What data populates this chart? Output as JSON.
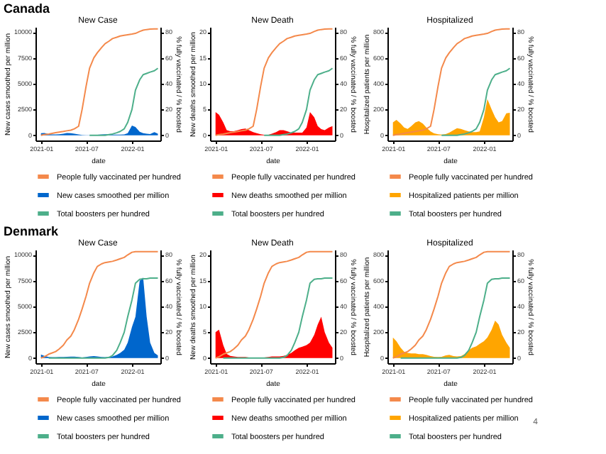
{
  "chart_data": [
    {
      "type": "area",
      "title": "New Case",
      "xlabel": "date",
      "ylabel": "New cases smoothed per million",
      "y2label": "% fully vaccinated / % boosted",
      "xlim": [
        "2020-12-10",
        "2022-04-25"
      ],
      "xticks": [
        "2021-01",
        "2021-07",
        "2022-01"
      ],
      "ylim": [
        -500,
        10500
      ],
      "yticks": [
        0,
        2500,
        5000,
        7500,
        10000
      ],
      "y2lim": [
        -4,
        84
      ],
      "y2ticks": [
        0,
        20,
        40,
        60,
        80
      ],
      "legend": "bottom",
      "annotations": [
        "Canada"
      ],
      "x": [
        "2021-01-01",
        "2021-01-15",
        "2021-02-01",
        "2021-02-15",
        "2021-03-01",
        "2021-03-15",
        "2021-04-01",
        "2021-04-15",
        "2021-05-01",
        "2021-05-15",
        "2021-06-01",
        "2021-06-15",
        "2021-07-01",
        "2021-07-15",
        "2021-08-01",
        "2021-08-15",
        "2021-09-01",
        "2021-09-15",
        "2021-10-01",
        "2021-10-15",
        "2021-11-01",
        "2021-11-15",
        "2021-12-01",
        "2021-12-15",
        "2022-01-01",
        "2022-01-15",
        "2022-02-01",
        "2022-02-15",
        "2022-03-01",
        "2022-03-15",
        "2022-04-01",
        "2022-04-15"
      ],
      "series": [
        {
          "name": "People fully vaccinated per hundred",
          "type": "line",
          "axis": "y2",
          "color": "#f4894b",
          "values": [
            0,
            0.5,
            1,
            1.5,
            2,
            2.5,
            3,
            3.5,
            4,
            5,
            7,
            20,
            38,
            52,
            60,
            64,
            68,
            71,
            73,
            75,
            76,
            77,
            77.5,
            78,
            78.5,
            79,
            80.5,
            81.5,
            82,
            82.3,
            82.5,
            82.5
          ]
        },
        {
          "name": "New cases smoothed per million",
          "color": "#0066cc",
          "values": [
            200,
            220,
            120,
            80,
            80,
            100,
            150,
            220,
            210,
            150,
            80,
            30,
            15,
            10,
            20,
            50,
            90,
            110,
            100,
            70,
            60,
            60,
            80,
            200,
            950,
            800,
            350,
            200,
            150,
            120,
            300,
            150
          ]
        },
        {
          "name": "Total boosters per hundred",
          "type": "line",
          "axis": "y2",
          "color": "#4daf8a",
          "values": [
            null,
            null,
            null,
            null,
            null,
            null,
            null,
            null,
            null,
            null,
            null,
            null,
            null,
            0,
            0,
            0,
            0,
            0,
            0.5,
            1,
            2,
            3,
            5,
            10,
            20,
            35,
            43,
            47,
            48,
            49,
            50,
            52
          ]
        }
      ]
    },
    {
      "type": "area",
      "title": "New Death",
      "xlabel": "date",
      "ylabel": "New deaths smoothed per million",
      "y2label": "% fully vaccinated / % boosted",
      "xlim": [
        "2020-12-10",
        "2022-04-25"
      ],
      "xticks": [
        "2021-01",
        "2021-07",
        "2022-01"
      ],
      "ylim": [
        -1,
        21
      ],
      "yticks": [
        0,
        5,
        10,
        15,
        20
      ],
      "y2lim": [
        -4,
        84
      ],
      "y2ticks": [
        0,
        20,
        40,
        60,
        80
      ],
      "legend": "bottom",
      "x": [
        "2021-01-01",
        "2021-01-15",
        "2021-02-01",
        "2021-02-15",
        "2021-03-01",
        "2021-03-15",
        "2021-04-01",
        "2021-04-15",
        "2021-05-01",
        "2021-05-15",
        "2021-06-01",
        "2021-06-15",
        "2021-07-01",
        "2021-07-15",
        "2021-08-01",
        "2021-08-15",
        "2021-09-01",
        "2021-09-15",
        "2021-10-01",
        "2021-10-15",
        "2021-11-01",
        "2021-11-15",
        "2021-12-01",
        "2021-12-15",
        "2022-01-01",
        "2022-01-15",
        "2022-02-01",
        "2022-02-15",
        "2022-03-01",
        "2022-03-15",
        "2022-04-01",
        "2022-04-15"
      ],
      "series": [
        {
          "name": "People fully vaccinated per hundred",
          "type": "line",
          "axis": "y2",
          "color": "#f4894b",
          "values": [
            0,
            0.5,
            1,
            1.5,
            2,
            2.5,
            3,
            3.5,
            4,
            5,
            7,
            20,
            38,
            52,
            60,
            64,
            68,
            71,
            73,
            75,
            76,
            77,
            77.5,
            78,
            78.5,
            79,
            80.5,
            81.5,
            82,
            82.3,
            82.5,
            82.5
          ]
        },
        {
          "name": "New deaths smoothed per million",
          "color": "#ff0000",
          "values": [
            4.5,
            4,
            2.5,
            1,
            0.8,
            0.8,
            1,
            1.2,
            1.3,
            1,
            0.6,
            0.4,
            0.2,
            0.1,
            0.1,
            0.3,
            0.6,
            1,
            1,
            0.8,
            0.5,
            0.5,
            0.5,
            0.5,
            1.5,
            4.5,
            3.5,
            1.8,
            1.2,
            1,
            1.5,
            1.8
          ]
        },
        {
          "name": "Total boosters per hundred",
          "type": "line",
          "axis": "y2",
          "color": "#4daf8a",
          "values": [
            null,
            null,
            null,
            null,
            null,
            null,
            null,
            null,
            null,
            null,
            null,
            null,
            null,
            0,
            0,
            0,
            0,
            0,
            0.5,
            1,
            2,
            3,
            5,
            10,
            20,
            35,
            43,
            47,
            48,
            49,
            50,
            52
          ]
        }
      ]
    },
    {
      "type": "area",
      "title": "Hospitalized",
      "xlabel": "date",
      "ylabel": "Hospitalized patients per million",
      "y2label": "% fully vaccinated / % boosted",
      "xlim": [
        "2020-12-10",
        "2022-04-25"
      ],
      "xticks": [
        "2021-01",
        "2021-07",
        "2022-01"
      ],
      "ylim": [
        -40,
        840
      ],
      "yticks": [
        0,
        200,
        400,
        600,
        800
      ],
      "y2lim": [
        -4,
        84
      ],
      "y2ticks": [
        0,
        20,
        40,
        60,
        80
      ],
      "legend": "bottom",
      "x": [
        "2021-01-01",
        "2021-01-15",
        "2021-02-01",
        "2021-02-15",
        "2021-03-01",
        "2021-03-15",
        "2021-04-01",
        "2021-04-15",
        "2021-05-01",
        "2021-05-15",
        "2021-06-01",
        "2021-06-15",
        "2021-07-01",
        "2021-07-15",
        "2021-08-01",
        "2021-08-15",
        "2021-09-01",
        "2021-09-15",
        "2021-10-01",
        "2021-10-15",
        "2021-11-01",
        "2021-11-15",
        "2021-12-01",
        "2021-12-15",
        "2022-01-01",
        "2022-01-15",
        "2022-02-01",
        "2022-02-15",
        "2022-03-01",
        "2022-03-15",
        "2022-04-01",
        "2022-04-15"
      ],
      "series": [
        {
          "name": "People fully vaccinated per hundred",
          "type": "line",
          "axis": "y2",
          "color": "#f4894b",
          "values": [
            0,
            0.5,
            1,
            1.5,
            2,
            2.5,
            3,
            3.5,
            4,
            5,
            7,
            20,
            38,
            52,
            60,
            64,
            68,
            71,
            73,
            75,
            76,
            77,
            77.5,
            78,
            78.5,
            79,
            80.5,
            81.5,
            82,
            82.3,
            82.5,
            82.5
          ]
        },
        {
          "name": "Hospitalized patients per million",
          "color": "#ffa500",
          "values": [
            100,
            120,
            90,
            60,
            50,
            70,
            100,
            110,
            90,
            60,
            30,
            15,
            8,
            5,
            10,
            20,
            40,
            55,
            50,
            40,
            30,
            25,
            25,
            30,
            140,
            280,
            200,
            140,
            100,
            110,
            170,
            175
          ]
        },
        {
          "name": "Total boosters per hundred",
          "type": "line",
          "axis": "y2",
          "color": "#4daf8a",
          "values": [
            null,
            null,
            null,
            null,
            null,
            null,
            null,
            null,
            null,
            null,
            null,
            null,
            null,
            0,
            0,
            0,
            0,
            0,
            0.5,
            1,
            2,
            3,
            5,
            10,
            20,
            35,
            43,
            47,
            48,
            49,
            50,
            52
          ]
        }
      ]
    },
    {
      "type": "area",
      "title": "New Case",
      "xlabel": "date",
      "ylabel": "New cases smoothed per million",
      "y2label": "% fully vaccinated / % boosted",
      "xlim": [
        "2020-12-10",
        "2022-04-25"
      ],
      "xticks": [
        "2021-01",
        "2021-07",
        "2022-01"
      ],
      "ylim": [
        -500,
        10500
      ],
      "yticks": [
        0,
        2500,
        5000,
        7500,
        10000
      ],
      "y2lim": [
        -4,
        84
      ],
      "y2ticks": [
        0,
        20,
        40,
        60,
        80
      ],
      "legend": "bottom",
      "annotations": [
        "Denmark"
      ],
      "x": [
        "2021-01-01",
        "2021-01-15",
        "2021-02-01",
        "2021-02-15",
        "2021-03-01",
        "2021-03-15",
        "2021-04-01",
        "2021-04-15",
        "2021-05-01",
        "2021-05-15",
        "2021-06-01",
        "2021-06-15",
        "2021-07-01",
        "2021-07-15",
        "2021-08-01",
        "2021-08-15",
        "2021-09-01",
        "2021-09-15",
        "2021-10-01",
        "2021-10-15",
        "2021-11-01",
        "2021-11-15",
        "2021-12-01",
        "2021-12-15",
        "2022-01-01",
        "2022-01-15",
        "2022-02-01",
        "2022-02-15",
        "2022-03-01",
        "2022-03-15",
        "2022-04-01",
        "2022-04-15"
      ],
      "series": [
        {
          "name": "People fully vaccinated per hundred",
          "type": "line",
          "axis": "y2",
          "color": "#f4894b",
          "values": [
            0,
            1,
            3,
            4,
            5,
            7,
            10,
            14,
            17,
            22,
            30,
            38,
            48,
            58,
            66,
            71,
            73,
            74,
            74.5,
            75,
            76,
            77,
            78,
            80,
            82,
            82.5,
            82.5,
            82.5,
            82.5,
            82.5,
            82.5,
            82.5
          ]
        },
        {
          "name": "New cases smoothed per million",
          "color": "#0066cc",
          "values": [
            350,
            200,
            100,
            80,
            90,
            100,
            110,
            120,
            130,
            140,
            100,
            50,
            100,
            150,
            180,
            150,
            100,
            80,
            100,
            150,
            300,
            500,
            800,
            1500,
            3000,
            4000,
            7500,
            7800,
            4000,
            1500,
            500,
            250
          ]
        },
        {
          "name": "Total boosters per hundred",
          "type": "line",
          "axis": "y2",
          "color": "#4daf8a",
          "values": [
            null,
            null,
            0,
            0,
            0,
            0,
            0,
            0,
            0,
            0,
            0,
            0,
            0,
            0,
            0,
            0,
            0,
            0,
            0.5,
            2,
            6,
            12,
            20,
            32,
            45,
            58,
            61,
            61.5,
            61.5,
            62,
            62,
            62
          ]
        }
      ]
    },
    {
      "type": "area",
      "title": "New Death",
      "xlabel": "date",
      "ylabel": "New deaths smoothed per million",
      "y2label": "% fully vaccinated / % boosted",
      "xlim": [
        "2020-12-10",
        "2022-04-25"
      ],
      "xticks": [
        "2021-01",
        "2021-07",
        "2022-01"
      ],
      "ylim": [
        -1,
        21
      ],
      "yticks": [
        0,
        5,
        10,
        15,
        20
      ],
      "y2lim": [
        -4,
        84
      ],
      "y2ticks": [
        0,
        20,
        40,
        60,
        80
      ],
      "legend": "bottom",
      "x": [
        "2021-01-01",
        "2021-01-15",
        "2021-02-01",
        "2021-02-15",
        "2021-03-01",
        "2021-03-15",
        "2021-04-01",
        "2021-04-15",
        "2021-05-01",
        "2021-05-15",
        "2021-06-01",
        "2021-06-15",
        "2021-07-01",
        "2021-07-15",
        "2021-08-01",
        "2021-08-15",
        "2021-09-01",
        "2021-09-15",
        "2021-10-01",
        "2021-10-15",
        "2021-11-01",
        "2021-11-15",
        "2021-12-01",
        "2021-12-15",
        "2022-01-01",
        "2022-01-15",
        "2022-02-01",
        "2022-02-15",
        "2022-03-01",
        "2022-03-15",
        "2022-04-01",
        "2022-04-15"
      ],
      "series": [
        {
          "name": "People fully vaccinated per hundred",
          "type": "line",
          "axis": "y2",
          "color": "#f4894b",
          "values": [
            0,
            1,
            3,
            4,
            5,
            7,
            10,
            14,
            17,
            22,
            30,
            38,
            48,
            58,
            66,
            71,
            73,
            74,
            74.5,
            75,
            76,
            77,
            78,
            80,
            82,
            82.5,
            82.5,
            82.5,
            82.5,
            82.5,
            82.5,
            82.5
          ]
        },
        {
          "name": "New deaths smoothed per million",
          "color": "#ff0000",
          "values": [
            5,
            5.5,
            2.5,
            0.8,
            0.4,
            0.3,
            0.2,
            0.2,
            0.2,
            0.1,
            0.1,
            0.1,
            0.1,
            0.1,
            0.2,
            0.3,
            0.3,
            0.3,
            0.4,
            0.6,
            1,
            1.5,
            2,
            2.2,
            2.5,
            3,
            4.5,
            6.5,
            8,
            5,
            3,
            2
          ]
        },
        {
          "name": "Total boosters per hundred",
          "type": "line",
          "axis": "y2",
          "color": "#4daf8a",
          "values": [
            null,
            null,
            0,
            0,
            0,
            0,
            0,
            0,
            0,
            0,
            0,
            0,
            0,
            0,
            0,
            0,
            0,
            0,
            0.5,
            2,
            6,
            12,
            20,
            32,
            45,
            58,
            61,
            61.5,
            61.5,
            62,
            62,
            62
          ]
        }
      ]
    },
    {
      "type": "area",
      "title": "Hospitalized",
      "xlabel": "date",
      "ylabel": "Hospitalized patients per million",
      "y2label": "% fully vaccinated / % boosted",
      "xlim": [
        "2020-12-10",
        "2022-04-25"
      ],
      "xticks": [
        "2021-01",
        "2021-07",
        "2022-01"
      ],
      "ylim": [
        -40,
        840
      ],
      "yticks": [
        0,
        200,
        400,
        600,
        800
      ],
      "y2lim": [
        -4,
        84
      ],
      "y2ticks": [
        0,
        20,
        40,
        60,
        80
      ],
      "legend": "bottom",
      "annotations": [
        "4"
      ],
      "x": [
        "2021-01-01",
        "2021-01-15",
        "2021-02-01",
        "2021-02-15",
        "2021-03-01",
        "2021-03-15",
        "2021-04-01",
        "2021-04-15",
        "2021-05-01",
        "2021-05-15",
        "2021-06-01",
        "2021-06-15",
        "2021-07-01",
        "2021-07-15",
        "2021-08-01",
        "2021-08-15",
        "2021-09-01",
        "2021-09-15",
        "2021-10-01",
        "2021-10-15",
        "2021-11-01",
        "2021-11-15",
        "2021-12-01",
        "2021-12-15",
        "2022-01-01",
        "2022-01-15",
        "2022-02-01",
        "2022-02-15",
        "2022-03-01",
        "2022-03-15",
        "2022-04-01",
        "2022-04-15"
      ],
      "series": [
        {
          "name": "People fully vaccinated per hundred",
          "type": "line",
          "axis": "y2",
          "color": "#f4894b",
          "values": [
            0,
            1,
            3,
            4,
            5,
            7,
            10,
            14,
            17,
            22,
            30,
            38,
            48,
            58,
            66,
            71,
            73,
            74,
            74.5,
            75,
            76,
            77,
            78,
            80,
            82,
            82.5,
            82.5,
            82.5,
            82.5,
            82.5,
            82.5,
            82.5
          ]
        },
        {
          "name": "Hospitalized patients per million",
          "color": "#ffa500",
          "values": [
            160,
            130,
            80,
            50,
            40,
            35,
            35,
            30,
            30,
            25,
            15,
            10,
            8,
            10,
            20,
            25,
            15,
            12,
            15,
            30,
            60,
            80,
            90,
            110,
            130,
            160,
            220,
            290,
            260,
            180,
            120,
            80
          ]
        },
        {
          "name": "Total boosters per hundred",
          "type": "line",
          "axis": "y2",
          "color": "#4daf8a",
          "values": [
            null,
            null,
            0,
            0,
            0,
            0,
            0,
            0,
            0,
            0,
            0,
            0,
            0,
            0,
            0,
            0,
            0,
            0,
            0.5,
            2,
            6,
            12,
            20,
            32,
            45,
            58,
            61,
            61.5,
            61.5,
            62,
            62,
            62
          ]
        }
      ]
    }
  ]
}
